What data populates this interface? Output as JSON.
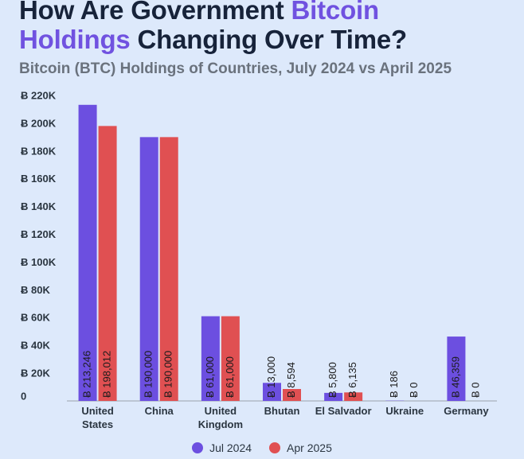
{
  "title": {
    "part1": "How Are Government ",
    "accent1": "Bitcoin",
    "accent2": "Holdings",
    "part2": " Changing Over Time?"
  },
  "subtitle": "Bitcoin (BTC) Holdings of Countries, July 2024 vs April 2025",
  "colors": {
    "accent": "#7052e0",
    "jul": "#6c4fe0",
    "apr": "#e05052"
  },
  "legend": [
    {
      "label": "Jul 2024",
      "color": "#6c4fe0"
    },
    {
      "label": "Apr 2025",
      "color": "#e05052"
    }
  ],
  "chart_data": {
    "type": "bar",
    "categories": [
      [
        "United",
        "States"
      ],
      [
        "China"
      ],
      [
        "United",
        "Kingdom"
      ],
      [
        "Bhutan"
      ],
      [
        "El Salvador"
      ],
      [
        "Ukraine"
      ],
      [
        "Germany"
      ]
    ],
    "series": [
      {
        "name": "Jul 2024",
        "color": "#6c4fe0",
        "values": [
          213246,
          190000,
          61000,
          13000,
          5800,
          186,
          46359
        ],
        "labels": [
          "Ƀ 213,246",
          "Ƀ 190,000",
          "Ƀ 61,000",
          "Ƀ 13,000",
          "Ƀ 5,800",
          "Ƀ 186",
          "Ƀ 46,359"
        ]
      },
      {
        "name": "Apr 2025",
        "color": "#e05052",
        "values": [
          198012,
          190000,
          61000,
          8594,
          6135,
          0,
          0
        ],
        "labels": [
          "Ƀ 198,012",
          "Ƀ 190,000",
          "Ƀ 61,000",
          "Ƀ 8,594",
          "Ƀ 6,135",
          "Ƀ 0",
          "Ƀ 0"
        ]
      }
    ],
    "ylim": [
      0,
      220000
    ],
    "yticks": [
      0,
      20000,
      40000,
      60000,
      80000,
      100000,
      120000,
      140000,
      160000,
      180000,
      200000,
      220000
    ],
    "ytick_labels": [
      "0",
      "Ƀ 20K",
      "Ƀ 40K",
      "Ƀ 60K",
      "Ƀ 80K",
      "Ƀ 100K",
      "Ƀ 120K",
      "Ƀ 140K",
      "Ƀ 160K",
      "Ƀ 180K",
      "Ƀ 200K",
      "Ƀ 220K"
    ],
    "grid": false,
    "legend_position": "bottom"
  }
}
